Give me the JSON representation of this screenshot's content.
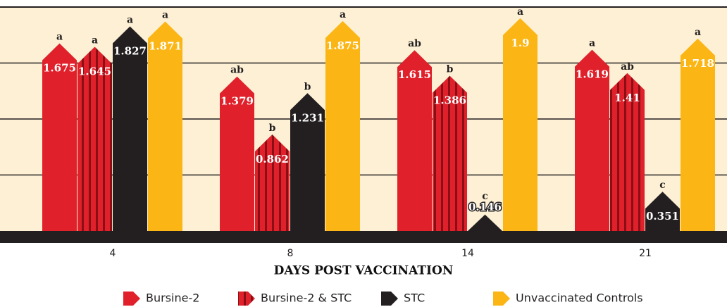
{
  "chart_data": {
    "type": "bar",
    "x_label": "DAYS POST VACCINATION",
    "categories": [
      "4",
      "8",
      "14",
      "21"
    ],
    "series": [
      {
        "name": "Bursine-2",
        "color": "#e0202a",
        "values": [
          1.675,
          1.379,
          1.615,
          1.619
        ],
        "letters": [
          "a",
          "ab",
          "ab",
          "a"
        ]
      },
      {
        "name": "Bursine-2 & STC",
        "color": "#e0202a",
        "pattern": "striped",
        "values": [
          1.645,
          0.862,
          1.386,
          1.41
        ],
        "letters": [
          "a",
          "b",
          "b",
          "ab"
        ]
      },
      {
        "name": "STC",
        "color": "#231f20",
        "values": [
          1.827,
          1.231,
          0.146,
          0.351
        ],
        "letters": [
          "a",
          "b",
          "c",
          "c"
        ]
      },
      {
        "name": "Unvaccinated Controls",
        "color": "#fbb615",
        "values": [
          1.871,
          1.875,
          1.9,
          1.718
        ],
        "letters": [
          "a",
          "a",
          "a",
          "a"
        ]
      }
    ],
    "ylim": [
      0,
      2
    ],
    "yticks": [
      0,
      0.5,
      1,
      1.5,
      2
    ],
    "grid": true
  }
}
